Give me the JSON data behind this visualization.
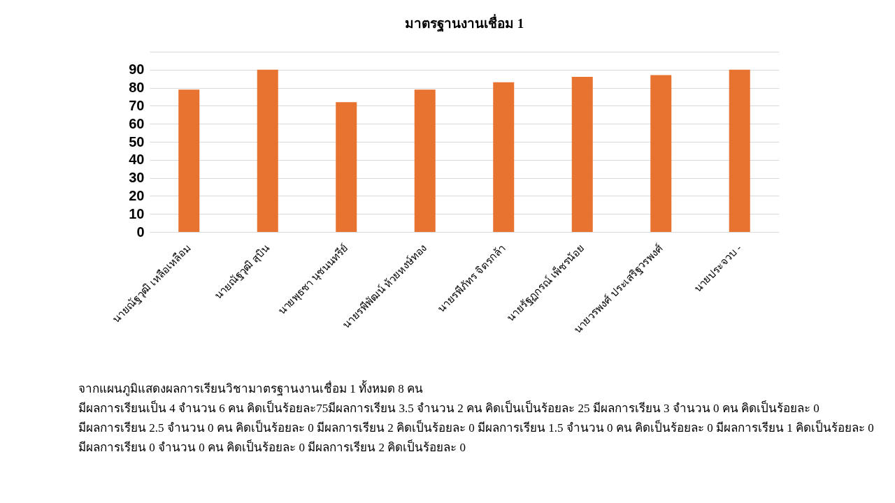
{
  "chart_data": {
    "type": "bar",
    "title": "มาตรฐานงานเชื่อม 1",
    "categories": [
      "นายณัฐวุฒิ  เหลือเหลือม",
      "นายณัฐวุฒิ  สุบิน",
      "นายพุธชา  นุชนนทรีย์",
      "นายรพีพัฒน์  ห้วยหงษ์ทอง",
      "นายรพีภัทร  จิตรกล้า",
      "นายรัฐฏกรณ์  เพ็ชรน้อย",
      "นายวรพงศ์  ประเสริฐวรพงศ์",
      "นายประจวบ  -"
    ],
    "values": [
      79,
      90,
      72,
      79,
      83,
      86,
      87,
      90
    ],
    "color": "#e8722f",
    "ylim": [
      0,
      100
    ],
    "yticks": [
      0,
      10,
      20,
      30,
      40,
      50,
      60,
      70,
      80,
      90,
      {
        "value": 100,
        "label": null
      }
    ],
    "grid": "y",
    "annotations": [
      "จากแผนภูมิแสดงผลการเรียนวิชามาตรฐานงานเชื่อม 1 ทั้งหมด 8 คน",
      "มีผลการเรียนเป็น 4 จำนวน 6 คน คิดเป็นร้อยละ75มีผลการเรียน 3.5 จำนวน 2 คน คิดเป็นเป็นร้อยละ 25 มีผลการเรียน 3 จำนวน 0 คน คิดเป็นร้อยละ 0",
      "มีผลการเรียน 2.5 จำนวน 0 คน คิดเป็นร้อยละ 0 มีผลการเรียน 2 คิดเป็นร้อยละ 0 มีผลการเรียน 1.5 จำนวน 0 คน คิดเป็นร้อยละ 0 มีผลการเรียน 1 คิดเป็นร้อยละ 0",
      "มีผลการเรียน 0 จำนวน 0 คน คิดเป็นร้อยละ 0 มีผลการเรียน 2 คิดเป็นร้อยละ 0"
    ]
  }
}
